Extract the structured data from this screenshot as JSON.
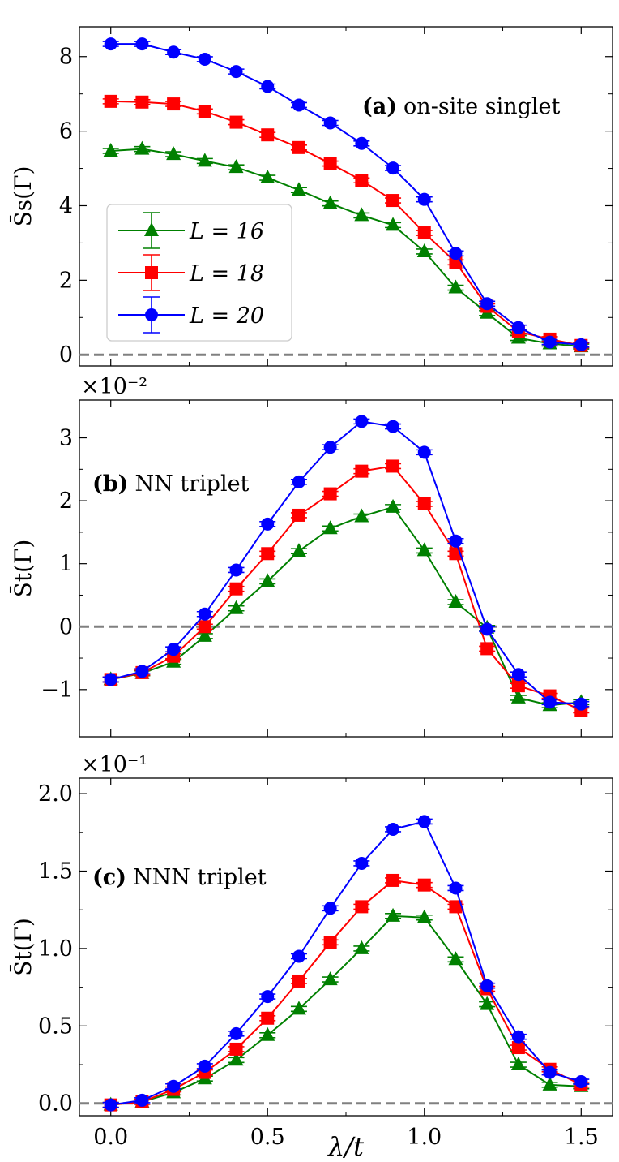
{
  "chart_data": [
    {
      "type": "line",
      "panel": "a",
      "annotation_letter": "(a)",
      "annotation_text": "on-site singlet",
      "ylabel": "S̄s(Γ)",
      "xlim": [
        -0.1,
        1.6
      ],
      "ylim": [
        -0.3,
        8.8
      ],
      "yticks": [
        0,
        2,
        4,
        6,
        8
      ],
      "ytick_labels": [
        "0",
        "2",
        "4",
        "6",
        "8"
      ],
      "exponent_label": "",
      "zero_line": true,
      "x": [
        0.0,
        0.1,
        0.2,
        0.3,
        0.4,
        0.5,
        0.6,
        0.7,
        0.8,
        0.9,
        1.0,
        1.1,
        1.2,
        1.3,
        1.4,
        1.5
      ],
      "series": [
        {
          "name": "L = 16",
          "color": "#008000",
          "marker": "triangle",
          "values": [
            5.47,
            5.52,
            5.38,
            5.2,
            5.03,
            4.75,
            4.42,
            4.06,
            3.74,
            3.48,
            2.77,
            1.8,
            1.12,
            0.45,
            0.3,
            0.22
          ]
        },
        {
          "name": "L = 18",
          "color": "#ff0000",
          "marker": "square",
          "values": [
            6.8,
            6.78,
            6.73,
            6.53,
            6.24,
            5.9,
            5.56,
            5.13,
            4.68,
            4.14,
            3.27,
            2.48,
            1.3,
            0.62,
            0.42,
            0.25
          ]
        },
        {
          "name": "L = 20",
          "color": "#0000ff",
          "marker": "circle",
          "values": [
            8.34,
            8.34,
            8.12,
            7.93,
            7.6,
            7.2,
            6.7,
            6.22,
            5.67,
            5.01,
            4.17,
            2.72,
            1.37,
            0.73,
            0.34,
            0.27
          ]
        }
      ],
      "legend": {
        "placement": "lower-left",
        "entries": [
          "L = 16",
          "L = 18",
          "L = 20"
        ]
      }
    },
    {
      "type": "line",
      "panel": "b",
      "annotation_letter": "(b)",
      "annotation_text": "NN triplet",
      "ylabel": "S̄t(Γ)",
      "xlim": [
        -0.1,
        1.6
      ],
      "ylim": [
        -1.75,
        3.6
      ],
      "yticks": [
        -1,
        0,
        1,
        2,
        3
      ],
      "ytick_labels": [
        "−1",
        "0",
        "1",
        "2",
        "3"
      ],
      "exponent_label": "×10⁻²",
      "zero_line": true,
      "x": [
        0.0,
        0.1,
        0.2,
        0.3,
        0.4,
        0.5,
        0.6,
        0.7,
        0.8,
        0.9,
        1.0,
        1.1,
        1.2,
        1.3,
        1.4,
        1.5
      ],
      "series": [
        {
          "name": "L = 16",
          "color": "#008000",
          "marker": "triangle",
          "values": [
            -0.84,
            -0.74,
            -0.56,
            -0.15,
            0.29,
            0.72,
            1.2,
            1.56,
            1.75,
            1.9,
            1.21,
            0.39,
            -0.02,
            -1.13,
            -1.25,
            -1.2
          ]
        },
        {
          "name": "L = 18",
          "color": "#ff0000",
          "marker": "square",
          "values": [
            -0.84,
            -0.73,
            -0.47,
            0.0,
            0.6,
            1.16,
            1.77,
            2.11,
            2.47,
            2.55,
            1.95,
            1.16,
            -0.35,
            -0.94,
            -1.1,
            -1.33
          ]
        },
        {
          "name": "L = 20",
          "color": "#0000ff",
          "marker": "circle",
          "values": [
            -0.84,
            -0.71,
            -0.36,
            0.2,
            0.9,
            1.63,
            2.3,
            2.85,
            3.26,
            3.18,
            2.77,
            1.36,
            -0.04,
            -0.76,
            -1.2,
            -1.23
          ]
        }
      ]
    },
    {
      "type": "line",
      "panel": "c",
      "annotation_letter": "(c)",
      "annotation_text": "NNN triplet",
      "ylabel": "S̄t(Γ)",
      "xlabel": "λ/t",
      "xlim": [
        -0.1,
        1.6
      ],
      "xticks": [
        0.0,
        0.5,
        1.0,
        1.5
      ],
      "xtick_labels": [
        "0.0",
        "0.5",
        "1.0",
        "1.5"
      ],
      "ylim": [
        -0.08,
        2.1
      ],
      "yticks": [
        0.0,
        0.5,
        1.0,
        1.5,
        2.0
      ],
      "ytick_labels": [
        "0.0",
        "0.5",
        "1.0",
        "1.5",
        "2.0"
      ],
      "exponent_label": "×10⁻¹",
      "zero_line": true,
      "x": [
        0.0,
        0.1,
        0.2,
        0.3,
        0.4,
        0.5,
        0.6,
        0.7,
        0.8,
        0.9,
        1.0,
        1.1,
        1.2,
        1.3,
        1.4,
        1.5
      ],
      "series": [
        {
          "name": "L = 16",
          "color": "#008000",
          "marker": "triangle",
          "values": [
            -0.01,
            0.01,
            0.07,
            0.16,
            0.28,
            0.44,
            0.61,
            0.8,
            1.0,
            1.21,
            1.2,
            0.93,
            0.64,
            0.25,
            0.12,
            0.11
          ]
        },
        {
          "name": "L = 18",
          "color": "#ff0000",
          "marker": "square",
          "values": [
            -0.01,
            0.01,
            0.09,
            0.2,
            0.35,
            0.55,
            0.79,
            1.04,
            1.27,
            1.44,
            1.41,
            1.27,
            0.74,
            0.36,
            0.22,
            0.12
          ]
        },
        {
          "name": "L = 20",
          "color": "#0000ff",
          "marker": "circle",
          "values": [
            -0.01,
            0.02,
            0.11,
            0.24,
            0.45,
            0.69,
            0.95,
            1.26,
            1.55,
            1.77,
            1.82,
            1.39,
            0.76,
            0.43,
            0.2,
            0.14
          ]
        }
      ]
    }
  ]
}
